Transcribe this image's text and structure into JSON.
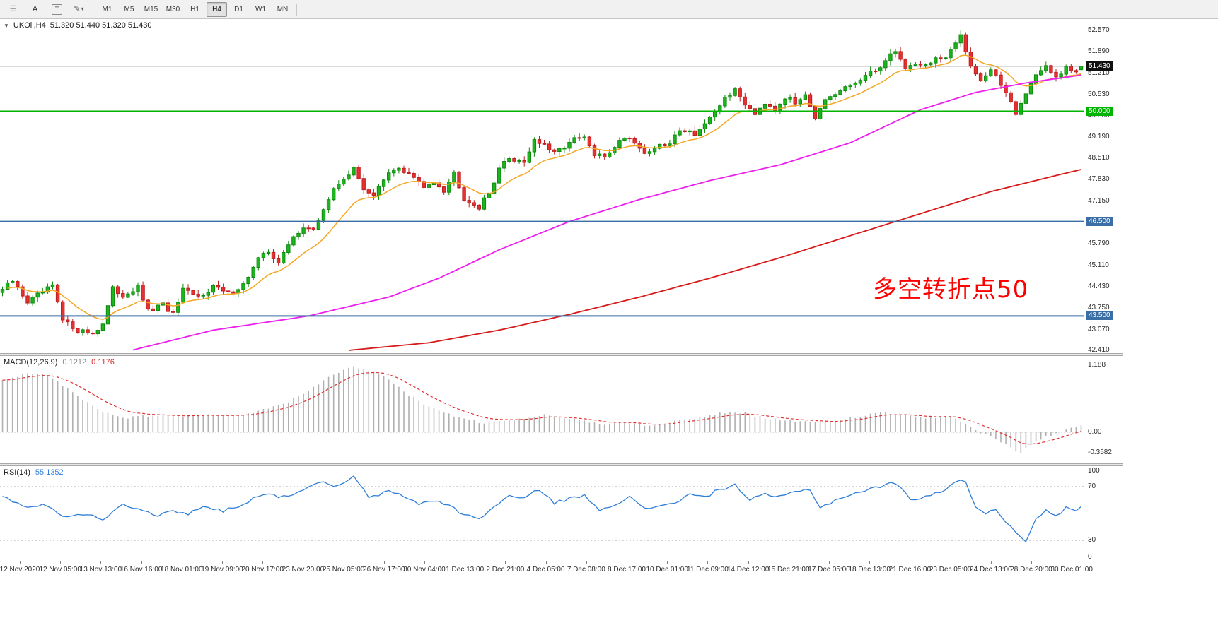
{
  "toolbar": {
    "text_a": "A",
    "text_t": "T",
    "timeframes": [
      {
        "label": "M1",
        "active": false
      },
      {
        "label": "M5",
        "active": false
      },
      {
        "label": "M15",
        "active": false
      },
      {
        "label": "M30",
        "active": false
      },
      {
        "label": "H1",
        "active": false
      },
      {
        "label": "H4",
        "active": true
      },
      {
        "label": "D1",
        "active": false
      },
      {
        "label": "W1",
        "active": false
      },
      {
        "label": "MN",
        "active": false
      }
    ]
  },
  "chart": {
    "symbol_title": "UKOil,H4",
    "ohlc_text": "51.320 51.440 51.320 51.430",
    "annotation_text": "多空转折点50",
    "annotation_color": "#fe0000"
  },
  "macd": {
    "title": "MACD(12,26,9)",
    "value_main": "0.1212",
    "value_signal": "0.1176",
    "axis": [
      {
        "label": "1.188",
        "value": 1.188
      },
      {
        "label": "0.00",
        "value": 0
      },
      {
        "label": "-0.3582",
        "value": -0.3582
      }
    ]
  },
  "rsi": {
    "title": "RSI(14)",
    "value": "55.1352",
    "axis": [
      {
        "label": "100",
        "pos": "top"
      },
      {
        "label": "70",
        "value": 70
      },
      {
        "label": "30",
        "value": 30
      },
      {
        "label": "0",
        "pos": "bottom"
      }
    ]
  },
  "chart_data": {
    "type": "candlestick",
    "symbol": "UKOil",
    "timeframe": "H4",
    "bars": 216,
    "price_range": {
      "min": 42.32,
      "max": 52.95
    },
    "current_price": 51.43,
    "current_label": "51.430",
    "current_badge_bg": "#101010",
    "ohlc_current": {
      "open": 51.32,
      "high": 51.44,
      "low": 51.32,
      "close": 51.43
    },
    "price_ticks": [
      "52.570",
      "51.890",
      "51.210",
      "50.530",
      "49.850",
      "49.190",
      "48.510",
      "47.830",
      "47.150",
      "45.790",
      "45.110",
      "44.430",
      "43.750",
      "43.070",
      "42.410"
    ],
    "hlines": [
      {
        "label": "50.000",
        "price": 50.0,
        "color": "#00b400"
      },
      {
        "label": "46.500",
        "price": 46.5,
        "color": "#3a6ea5"
      },
      {
        "label": "43.500",
        "price": 43.5,
        "color": "#3a6ea5"
      }
    ],
    "close_keyframes": [
      [
        0,
        44.35
      ],
      [
        2,
        44.6
      ],
      [
        5,
        43.95
      ],
      [
        7,
        44.15
      ],
      [
        10,
        44.45
      ],
      [
        12,
        43.35
      ],
      [
        15,
        43.05
      ],
      [
        18,
        42.95
      ],
      [
        20,
        43.25
      ],
      [
        22,
        44.35
      ],
      [
        24,
        44.15
      ],
      [
        27,
        44.4
      ],
      [
        29,
        43.65
      ],
      [
        32,
        43.85
      ],
      [
        34,
        43.55
      ],
      [
        36,
        44.3
      ],
      [
        39,
        44.1
      ],
      [
        42,
        44.45
      ],
      [
        45,
        44.2
      ],
      [
        48,
        44.5
      ],
      [
        51,
        45.3
      ],
      [
        53,
        45.55
      ],
      [
        55,
        45.2
      ],
      [
        58,
        46.0
      ],
      [
        60,
        46.35
      ],
      [
        62,
        46.2
      ],
      [
        64,
        46.9
      ],
      [
        66,
        47.5
      ],
      [
        68,
        47.9
      ],
      [
        70,
        48.15
      ],
      [
        72,
        47.55
      ],
      [
        74,
        47.35
      ],
      [
        77,
        48.0
      ],
      [
        79,
        48.2
      ],
      [
        82,
        47.9
      ],
      [
        84,
        47.55
      ],
      [
        86,
        47.8
      ],
      [
        88,
        47.5
      ],
      [
        90,
        48.05
      ],
      [
        92,
        47.25
      ],
      [
        95,
        46.95
      ],
      [
        97,
        47.4
      ],
      [
        99,
        48.2
      ],
      [
        101,
        48.5
      ],
      [
        104,
        48.4
      ],
      [
        106,
        49.1
      ],
      [
        108,
        48.9
      ],
      [
        110,
        48.65
      ],
      [
        112,
        48.9
      ],
      [
        114,
        49.1
      ],
      [
        116,
        49.15
      ],
      [
        118,
        48.6
      ],
      [
        120,
        48.55
      ],
      [
        122,
        48.9
      ],
      [
        124,
        49.2
      ],
      [
        126,
        49.05
      ],
      [
        128,
        48.65
      ],
      [
        130,
        48.85
      ],
      [
        133,
        48.95
      ],
      [
        135,
        49.45
      ],
      [
        138,
        49.3
      ],
      [
        140,
        49.6
      ],
      [
        142,
        49.9
      ],
      [
        144,
        50.45
      ],
      [
        146,
        50.65
      ],
      [
        148,
        50.25
      ],
      [
        150,
        49.95
      ],
      [
        152,
        50.3
      ],
      [
        154,
        50.1
      ],
      [
        156,
        50.45
      ],
      [
        158,
        50.25
      ],
      [
        160,
        50.6
      ],
      [
        162,
        49.8
      ],
      [
        164,
        50.3
      ],
      [
        166,
        50.5
      ],
      [
        168,
        50.75
      ],
      [
        170,
        50.9
      ],
      [
        172,
        51.1
      ],
      [
        174,
        51.3
      ],
      [
        176,
        51.6
      ],
      [
        178,
        51.95
      ],
      [
        180,
        51.35
      ],
      [
        182,
        51.55
      ],
      [
        184,
        51.45
      ],
      [
        186,
        51.7
      ],
      [
        188,
        51.65
      ],
      [
        190,
        52.15
      ],
      [
        191,
        52.45
      ],
      [
        193,
        51.45
      ],
      [
        195,
        51.0
      ],
      [
        197,
        51.3
      ],
      [
        199,
        50.85
      ],
      [
        201,
        50.35
      ],
      [
        202,
        49.95
      ],
      [
        204,
        50.55
      ],
      [
        206,
        51.2
      ],
      [
        208,
        51.4
      ],
      [
        210,
        51.05
      ],
      [
        212,
        51.35
      ],
      [
        214,
        51.25
      ],
      [
        215,
        51.43
      ]
    ],
    "ma_mid_keyframes": [
      [
        26,
        42.42
      ],
      [
        42,
        43.05
      ],
      [
        61,
        43.5
      ],
      [
        77,
        44.1
      ],
      [
        87,
        44.7
      ],
      [
        99,
        45.6
      ],
      [
        113,
        46.5
      ],
      [
        127,
        47.2
      ],
      [
        141,
        47.8
      ],
      [
        155,
        48.3
      ],
      [
        169,
        49.0
      ],
      [
        183,
        50.05
      ],
      [
        194,
        50.6
      ],
      [
        204,
        50.9
      ],
      [
        215,
        51.15
      ]
    ],
    "ma_slow_keyframes": [
      [
        69,
        42.41
      ],
      [
        85,
        42.65
      ],
      [
        99,
        43.05
      ],
      [
        113,
        43.55
      ],
      [
        127,
        44.1
      ],
      [
        141,
        44.7
      ],
      [
        155,
        45.35
      ],
      [
        169,
        46.05
      ],
      [
        183,
        46.75
      ],
      [
        197,
        47.45
      ],
      [
        211,
        48.0
      ],
      [
        215,
        48.15
      ]
    ],
    "macd_hist_keyframes": [
      [
        0,
        0.92
      ],
      [
        4,
        1.02
      ],
      [
        8,
        1.05
      ],
      [
        12,
        0.84
      ],
      [
        16,
        0.58
      ],
      [
        20,
        0.34
      ],
      [
        25,
        0.26
      ],
      [
        30,
        0.3
      ],
      [
        35,
        0.28
      ],
      [
        40,
        0.31
      ],
      [
        45,
        0.29
      ],
      [
        50,
        0.35
      ],
      [
        55,
        0.47
      ],
      [
        60,
        0.66
      ],
      [
        64,
        0.92
      ],
      [
        68,
        1.1
      ],
      [
        70,
        1.15
      ],
      [
        73,
        1.1
      ],
      [
        76,
        1.0
      ],
      [
        80,
        0.72
      ],
      [
        84,
        0.5
      ],
      [
        88,
        0.34
      ],
      [
        92,
        0.24
      ],
      [
        96,
        0.16
      ],
      [
        100,
        0.2
      ],
      [
        104,
        0.23
      ],
      [
        108,
        0.3
      ],
      [
        112,
        0.25
      ],
      [
        116,
        0.2
      ],
      [
        120,
        0.15
      ],
      [
        124,
        0.18
      ],
      [
        128,
        0.13
      ],
      [
        132,
        0.15
      ],
      [
        136,
        0.23
      ],
      [
        140,
        0.28
      ],
      [
        144,
        0.35
      ],
      [
        148,
        0.33
      ],
      [
        152,
        0.25
      ],
      [
        156,
        0.21
      ],
      [
        160,
        0.19
      ],
      [
        164,
        0.17
      ],
      [
        168,
        0.23
      ],
      [
        172,
        0.3
      ],
      [
        176,
        0.35
      ],
      [
        180,
        0.29
      ],
      [
        184,
        0.24
      ],
      [
        188,
        0.28
      ],
      [
        190,
        0.25
      ],
      [
        193,
        0.09
      ],
      [
        196,
        -0.05
      ],
      [
        199,
        -0.16
      ],
      [
        202,
        -0.33
      ],
      [
        203,
        -0.358
      ],
      [
        205,
        -0.22
      ],
      [
        208,
        -0.08
      ],
      [
        211,
        0.0
      ],
      [
        213,
        0.08
      ],
      [
        215,
        0.12
      ]
    ],
    "rsi_keyframes": [
      [
        0,
        62
      ],
      [
        5,
        55
      ],
      [
        8,
        57
      ],
      [
        12,
        48
      ],
      [
        16,
        50
      ],
      [
        20,
        46
      ],
      [
        24,
        57
      ],
      [
        28,
        53
      ],
      [
        31,
        48
      ],
      [
        34,
        52
      ],
      [
        37,
        50
      ],
      [
        40,
        55
      ],
      [
        44,
        52
      ],
      [
        48,
        57
      ],
      [
        52,
        65
      ],
      [
        56,
        62
      ],
      [
        60,
        68
      ],
      [
        64,
        73
      ],
      [
        67,
        70
      ],
      [
        70,
        77
      ],
      [
        73,
        62
      ],
      [
        77,
        66
      ],
      [
        80,
        63
      ],
      [
        83,
        57
      ],
      [
        86,
        60
      ],
      [
        89,
        56
      ],
      [
        92,
        49
      ],
      [
        95,
        46
      ],
      [
        98,
        55
      ],
      [
        101,
        63
      ],
      [
        104,
        61
      ],
      [
        107,
        68
      ],
      [
        110,
        58
      ],
      [
        113,
        61
      ],
      [
        116,
        63
      ],
      [
        119,
        53
      ],
      [
        122,
        57
      ],
      [
        125,
        62
      ],
      [
        128,
        53
      ],
      [
        131,
        56
      ],
      [
        134,
        58
      ],
      [
        137,
        64
      ],
      [
        140,
        62
      ],
      [
        143,
        68
      ],
      [
        146,
        71
      ],
      [
        149,
        60
      ],
      [
        152,
        64
      ],
      [
        155,
        62
      ],
      [
        158,
        66
      ],
      [
        161,
        68
      ],
      [
        163,
        54
      ],
      [
        166,
        60
      ],
      [
        169,
        64
      ],
      [
        172,
        67
      ],
      [
        175,
        70
      ],
      [
        178,
        73
      ],
      [
        181,
        60
      ],
      [
        184,
        63
      ],
      [
        187,
        66
      ],
      [
        190,
        73
      ],
      [
        192,
        74
      ],
      [
        194,
        55
      ],
      [
        196,
        50
      ],
      [
        198,
        53
      ],
      [
        200,
        44
      ],
      [
        202,
        37
      ],
      [
        204,
        30
      ],
      [
        206,
        45
      ],
      [
        208,
        52
      ],
      [
        210,
        48
      ],
      [
        212,
        54
      ],
      [
        214,
        52
      ],
      [
        215,
        55.1
      ]
    ],
    "rsi_levels": [
      70,
      30
    ],
    "rsi_visible_range": {
      "min": 15,
      "max": 85
    },
    "time_labels": [
      "12 Nov 2020",
      "12 Nov 05:00",
      "13 Nov 13:00",
      "16 Nov 16:00",
      "18 Nov 01:00",
      "19 Nov 09:00",
      "20 Nov 17:00",
      "23 Nov 20:00",
      "25 Nov 05:00",
      "26 Nov 17:00",
      "30 Nov 04:00",
      "1 Dec 13:00",
      "2 Dec 21:00",
      "4 Dec 05:00",
      "7 Dec 08:00",
      "8 Dec 17:00",
      "10 Dec 01:00",
      "11 Dec 09:00",
      "14 Dec 12:00",
      "15 Dec 21:00",
      "17 Dec 05:00",
      "18 Dec 13:00",
      "21 Dec 16:00",
      "23 Dec 05:00",
      "24 Dec 13:00",
      "28 Dec 20:00",
      "30 Dec 01:00"
    ],
    "colors": {
      "up_fill": "#1db51d",
      "up_stroke": "#0f8a0f",
      "down_fill": "#e53131",
      "down_stroke": "#bf1f1f",
      "ma_fast": "#f5a623",
      "ma_mid": "#ee1fee",
      "ma_slow": "#d61a1a",
      "macd_hist": "#b0b0b0",
      "macd_signal": "#e03030",
      "rsi_line": "#2f7ed8",
      "current_line": "#6a6a6a"
    }
  }
}
